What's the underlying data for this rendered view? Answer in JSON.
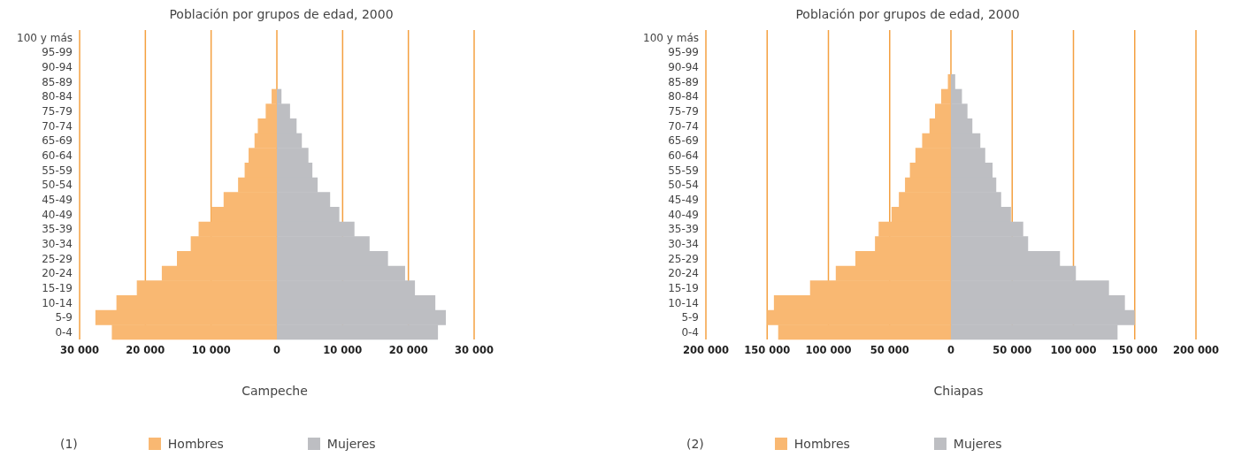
{
  "chart_data": [
    {
      "type": "bar",
      "title": "Población por grupos de edad, 2000",
      "xlabel": "Campeche",
      "annotations": [
        "(1)"
      ],
      "orientation": "horizontal",
      "stacked": true,
      "categories": [
        "100 y más",
        "95-99",
        "90-94",
        "85-89",
        "80-84",
        "75-79",
        "70-74",
        "65-69",
        "60-64",
        "55-59",
        "50-54",
        "45-49",
        "40-49",
        "35-39",
        "30-34",
        "25-29",
        "20-24",
        "15-19",
        "10-14",
        "5-9",
        "0-4"
      ],
      "series": [
        {
          "name": "Hombres",
          "color": "#f9b872",
          "values": [
            0,
            0,
            0,
            0,
            -800,
            -1700,
            -2900,
            -3400,
            -4300,
            -4900,
            -5900,
            -8100,
            -10000,
            -11900,
            -13100,
            -15200,
            -17500,
            -21300,
            -24400,
            -27600,
            -25100
          ]
        },
        {
          "name": "Mujeres",
          "color": "#bdbec2",
          "values": [
            0,
            0,
            0,
            0,
            700,
            2000,
            3000,
            3800,
            4800,
            5400,
            6200,
            8100,
            9500,
            11800,
            14100,
            16900,
            19500,
            21000,
            24100,
            25700,
            24500
          ]
        }
      ],
      "xlim": [
        -30000,
        30000
      ],
      "xticks": [
        {
          "value": -30000,
          "label": "30 000"
        },
        {
          "value": -20000,
          "label": "20 000"
        },
        {
          "value": -10000,
          "label": "10 000"
        },
        0,
        {
          "value": 10000,
          "label": "10 000"
        },
        {
          "value": 20000,
          "label": "20 000"
        },
        {
          "value": 30000,
          "label": "30 000"
        }
      ],
      "grid": "x",
      "legend": "bottom"
    },
    {
      "type": "bar",
      "title": "Población por grupos de edad, 2000",
      "xlabel": "Chiapas",
      "annotations": [
        "(2)"
      ],
      "orientation": "horizontal",
      "stacked": true,
      "categories": [
        "100 y más",
        "95-99",
        "90-94",
        "85-89",
        "80-84",
        "75-79",
        "70-74",
        "65-69",
        "60-64",
        "55-59",
        "50-54",
        "45-49",
        "40-49",
        "35-39",
        "30-34",
        "25-29",
        "20-24",
        "15-19",
        "10-14",
        "5-9",
        "0-4"
      ],
      "series": [
        {
          "name": "Hombres",
          "color": "#f9b872",
          "values": [
            0,
            0,
            0,
            -2500,
            -8000,
            -13000,
            -17500,
            -23500,
            -29000,
            -33500,
            -37500,
            -42500,
            -48500,
            -59000,
            -62000,
            -78000,
            -94000,
            -115000,
            -144500,
            -150000,
            -141000
          ]
        },
        {
          "name": "Mujeres",
          "color": "#bdbec2",
          "values": [
            0,
            0,
            0,
            3500,
            9000,
            13500,
            17500,
            24000,
            28000,
            34000,
            37000,
            41000,
            49000,
            59000,
            63000,
            89000,
            102000,
            129000,
            142000,
            150000,
            136000
          ]
        }
      ],
      "xlim": [
        -200000,
        200000
      ],
      "xticks": [
        {
          "value": -200000,
          "label": "200 000"
        },
        {
          "value": -150000,
          "label": "150 000"
        },
        {
          "value": -100000,
          "label": "100 000"
        },
        {
          "value": -50000,
          "label": "50 000"
        },
        0,
        {
          "value": 50000,
          "label": "50 000"
        },
        {
          "value": 100000,
          "label": "100 000"
        },
        {
          "value": 150000,
          "label": "150 000"
        },
        {
          "value": 200000,
          "label": "200 000"
        }
      ],
      "grid": "x",
      "legend": "bottom"
    }
  ]
}
